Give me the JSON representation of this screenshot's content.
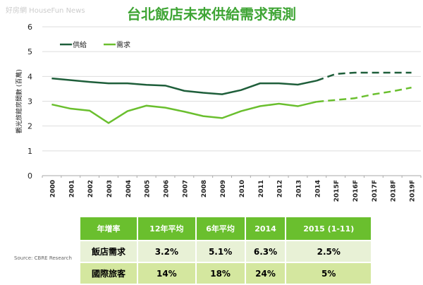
{
  "watermark": "好房網 HouseFun News",
  "chart_data": {
    "type": "line",
    "title": "台北飯店未來供給需求預測",
    "ylabel": "觀光旅館房間數 (百萬)",
    "xlabel": "",
    "ylim": [
      0,
      6
    ],
    "yticks": [
      0,
      1,
      2,
      3,
      4,
      5,
      6
    ],
    "grid": true,
    "legend": "top-left",
    "categories": [
      "2000",
      "2001",
      "2002",
      "2003",
      "2004",
      "2005",
      "2006",
      "2007",
      "2008",
      "2009",
      "2010",
      "2011",
      "2012",
      "2013",
      "2014",
      "2015F",
      "2016F",
      "2017F",
      "2018F",
      "2019F"
    ],
    "forecast_from_index": 14,
    "series": [
      {
        "name": "供給",
        "color": "#1e5e3a",
        "values": [
          3.92,
          3.85,
          3.78,
          3.72,
          3.72,
          3.66,
          3.63,
          3.42,
          3.34,
          3.28,
          3.45,
          3.72,
          3.72,
          3.67,
          3.83,
          4.1,
          4.15,
          4.15,
          4.15,
          4.15
        ]
      },
      {
        "name": "需求",
        "color": "#6abf2e",
        "values": [
          2.87,
          2.7,
          2.62,
          2.12,
          2.6,
          2.82,
          2.74,
          2.58,
          2.4,
          2.32,
          2.6,
          2.8,
          2.9,
          2.8,
          2.98,
          3.05,
          3.12,
          3.28,
          3.4,
          3.55
        ]
      }
    ]
  },
  "table": {
    "headers": [
      "年增率",
      "12年平均",
      "6年平均",
      "2014",
      "2015 (1-11)"
    ],
    "rows": [
      [
        "飯店需求",
        "3.2%",
        "5.1%",
        "6.3%",
        "2.5%"
      ],
      [
        "國際旅客",
        "14%",
        "18%",
        "24%",
        "5%"
      ]
    ]
  },
  "source": "Source: CBRE Research"
}
